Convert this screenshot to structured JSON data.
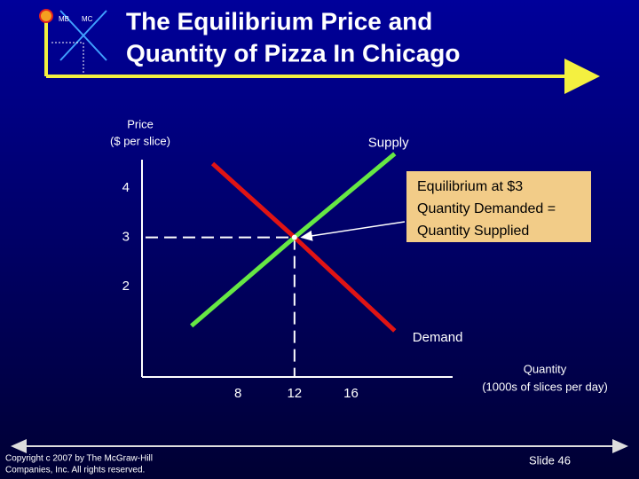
{
  "slide": {
    "logo": [
      "MB",
      "MC"
    ],
    "title": [
      "The Equilibrium Price and",
      "Quantity of Pizza In Chicago"
    ],
    "copyright": [
      "Copyright c 2007 by The McGraw-Hill",
      "Companies, Inc. All rights reserved."
    ],
    "slide_number": "Slide 46"
  },
  "chart_data": {
    "type": "line",
    "y_label": [
      "Price",
      "($ per slice)"
    ],
    "x_label": [
      "Quantity",
      "(1000s of slices per day)"
    ],
    "xlim": [
      1.2,
      23.2
    ],
    "ylim": [
      0.16,
      4.58
    ],
    "xticks": [
      8,
      12,
      16
    ],
    "yticks": [
      2,
      3,
      4
    ],
    "grid": false,
    "series": [
      {
        "name": "Supply",
        "color": "#66e844",
        "x": [
          4.7,
          12,
          19.1
        ],
        "values": [
          1.2,
          3,
          4.7
        ]
      },
      {
        "name": "Demand",
        "color": "#e01414",
        "x": [
          6.2,
          12,
          19.1
        ],
        "values": [
          4.5,
          3,
          1.1
        ]
      }
    ],
    "equilibrium": {
      "x": 12,
      "y": 3
    },
    "annotation": [
      "Equilibrium at $3",
      "Quantity Demanded =",
      "Quantity Supplied"
    ]
  }
}
